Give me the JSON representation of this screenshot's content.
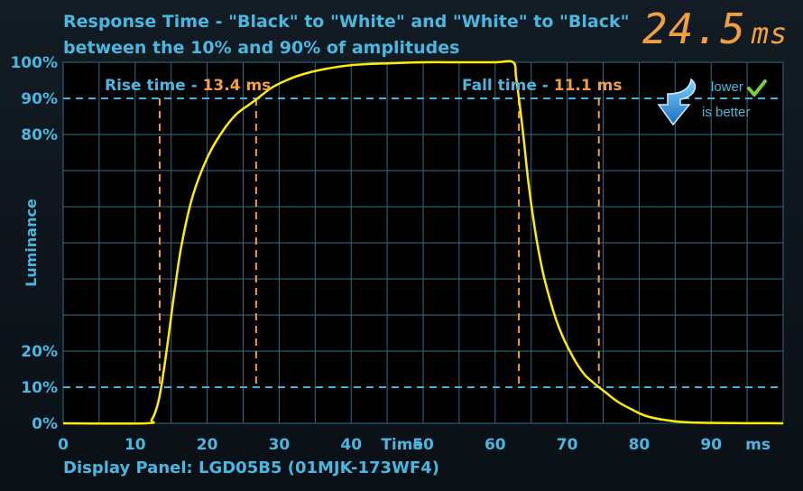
{
  "header": {
    "title_line1": "Response Time - \"Black\" to \"White\" and \"White\" to \"Black\"",
    "title_line2": "between the 10% and 90% of amplitudes",
    "readout_value": "24.5",
    "readout_unit": "ms"
  },
  "footer": {
    "panel": "Display Panel: LGD05B5 (01MJK-173WF4)"
  },
  "badge": {
    "line1": "lower",
    "line2": "is better",
    "arrow_icon": "down-arrow-icon",
    "check_icon": "checkmark-icon"
  },
  "colors": {
    "accent": "#4ab7e0",
    "curve": "#ffee00",
    "marker": "#f0a040",
    "grid": "#2f6e88",
    "threshold": "#3ab4e0",
    "plot_bg": "#000000"
  },
  "chart_data": {
    "type": "line",
    "title": "Response Time - \"Black\" to \"White\" and \"White\" to \"Black\" between the 10% and 90% of amplitudes",
    "xlabel": "Time",
    "xunit": "ms",
    "ylabel": "Luminance",
    "xlim": [
      0,
      100
    ],
    "ylim": [
      0,
      100
    ],
    "x_ticks": [
      0,
      10,
      20,
      30,
      40,
      50,
      60,
      70,
      80,
      90
    ],
    "x_tick_labels": [
      "0",
      "10",
      "20",
      "30",
      "40",
      "50",
      "60",
      "70",
      "80",
      "90"
    ],
    "y_ticks": [
      0,
      10,
      20,
      80,
      90,
      100
    ],
    "y_tick_labels": [
      "0%",
      "10%",
      "20%",
      "80%",
      "90%",
      "100%"
    ],
    "grid": true,
    "thresholds": [
      10,
      90
    ],
    "rise": {
      "label": "Rise time - ",
      "value": "13.4 ms",
      "start": 13.4,
      "end": 26.8
    },
    "fall": {
      "label": "Fall time - ",
      "value": "11.1 ms",
      "start": 63.3,
      "end": 74.4
    },
    "series": [
      {
        "x": [
          0,
          11.5,
          12.3,
          13.1,
          13.7,
          14.5,
          15.5,
          16.5,
          18,
          20,
          22,
          24,
          26,
          27,
          29,
          31,
          33,
          36,
          40,
          45,
          50,
          55,
          60,
          62.5,
          62.9,
          63.3,
          63.9,
          64.6,
          65.5,
          66.5,
          67.5,
          68.5,
          69.5,
          70.5,
          71.5,
          72.5,
          73.5,
          74.4,
          75.5,
          77,
          79,
          81,
          84,
          88,
          100
        ],
        "y": [
          0,
          0,
          1,
          5,
          11,
          22,
          37,
          50,
          63,
          73.5,
          80.5,
          85.5,
          88.5,
          90,
          93,
          95,
          96.5,
          98,
          99.2,
          99.7,
          100,
          100,
          100,
          100,
          96,
          90,
          80,
          67,
          54,
          43,
          35,
          28.5,
          23.5,
          19.5,
          16,
          13.3,
          11.5,
          10,
          8.3,
          6,
          3.8,
          2,
          0.8,
          0.2,
          0
        ]
      }
    ]
  }
}
